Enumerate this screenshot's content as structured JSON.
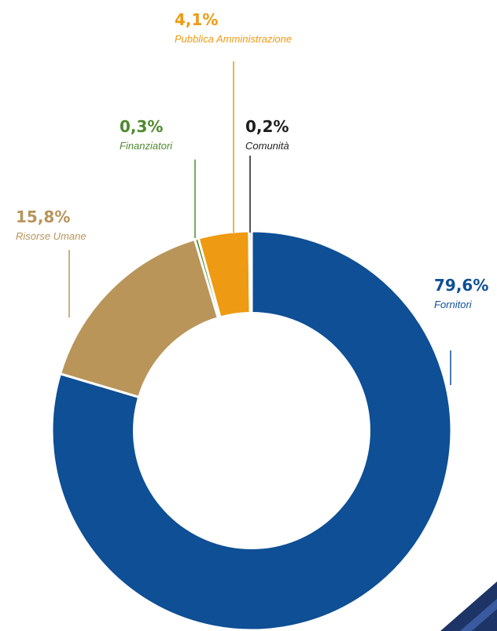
{
  "chart_data": {
    "type": "pie",
    "title": "",
    "series": [
      {
        "label": "Fornitori",
        "value": 79.6,
        "value_label": "79,6%",
        "color": "#0e4f95"
      },
      {
        "label": "Risorse Umane",
        "value": 15.8,
        "value_label": "15,8%",
        "color": "#b9955a"
      },
      {
        "label": "Finanziatori",
        "value": 0.3,
        "value_label": "0,3%",
        "color": "#4f8a2e"
      },
      {
        "label": "Pubblica Amministrazione",
        "value": 4.1,
        "value_label": "4,1%",
        "color": "#ee9a12"
      },
      {
        "label": "Comunità",
        "value": 0.2,
        "value_label": "0,2%",
        "color": "#1e1e1e"
      }
    ]
  }
}
